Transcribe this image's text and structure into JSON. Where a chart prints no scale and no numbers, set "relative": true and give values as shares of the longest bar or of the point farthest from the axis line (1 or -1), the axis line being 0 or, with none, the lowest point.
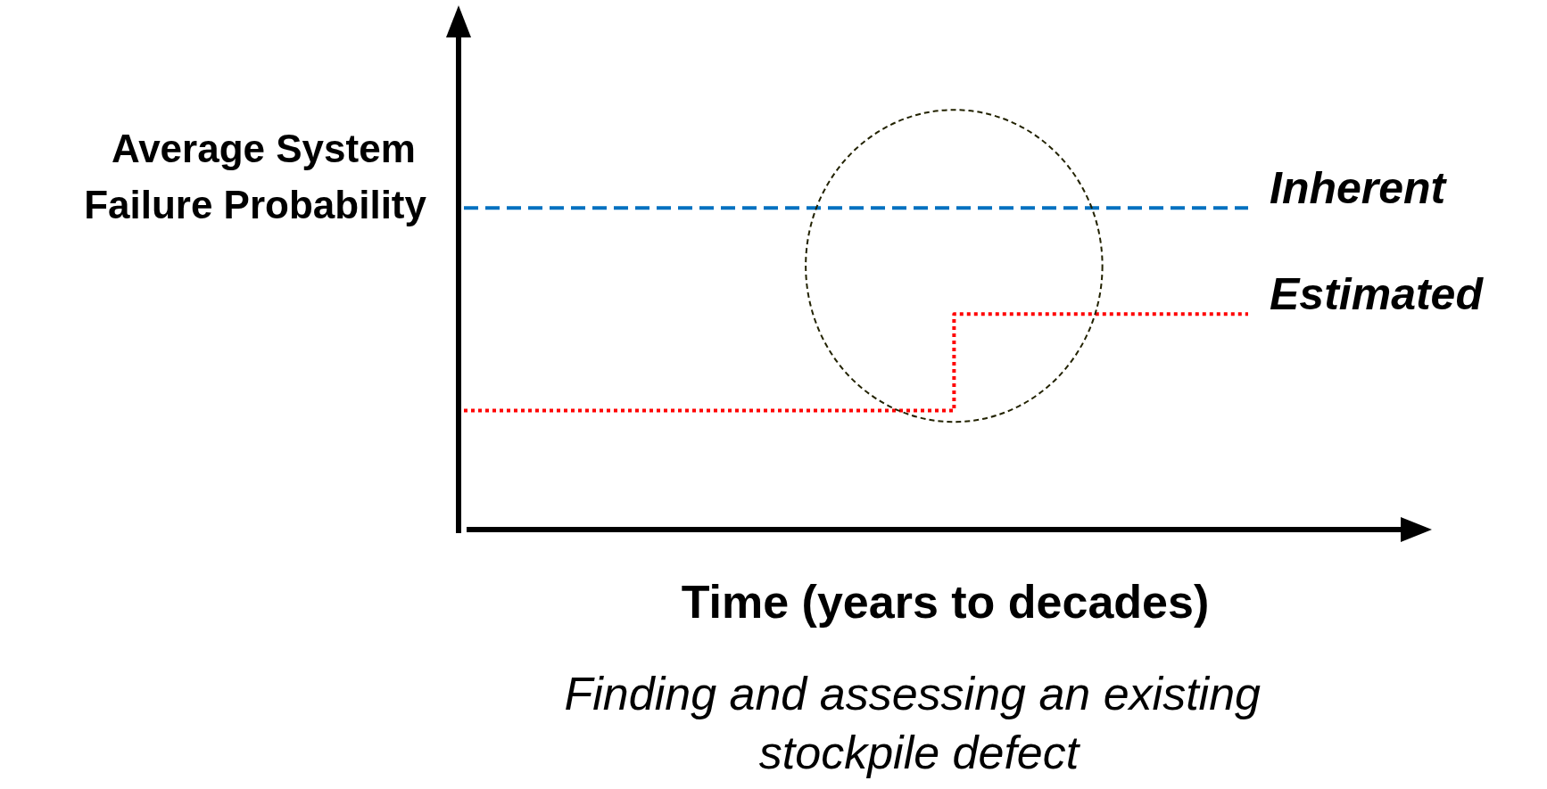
{
  "chart_data": {
    "type": "line",
    "relative": true,
    "xlabel": "Time (years to decades)",
    "ylabel": "Average System Failure Probability",
    "categories": [
      null,
      null,
      null,
      null,
      null,
      null,
      null,
      null,
      null
    ],
    "series": [
      {
        "name": "Inherent",
        "color": "#0070c0",
        "line_style": "dashed",
        "values": [
          1,
          1,
          1,
          1,
          1,
          1,
          1,
          1,
          1
        ]
      },
      {
        "name": "Estimated",
        "type": "step",
        "color": "#ff0000",
        "line_style": "dotted",
        "values": [
          0.37,
          0.37,
          0.37,
          0.37,
          0.37,
          0.67,
          0.67,
          0.67,
          0.67
        ]
      }
    ],
    "marker": "none",
    "grid": false,
    "legend": false,
    "annotations": [
      "Finding and assessing an existing stockpile defect"
    ]
  }
}
